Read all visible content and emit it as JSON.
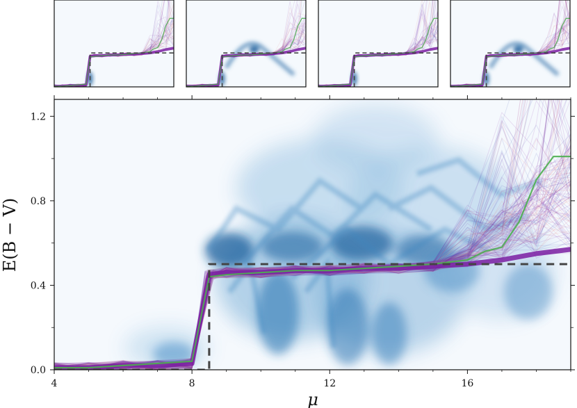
{
  "chart_data": {
    "type": "heatmap",
    "title": "",
    "xlabel": "μ",
    "ylabel": "E(B − V)",
    "xlim": [
      4,
      19
    ],
    "ylim": [
      0,
      1.28
    ],
    "xticks": [
      4,
      8,
      12,
      16
    ],
    "xtick_labels": [
      "4",
      "8",
      "12",
      "16"
    ],
    "yticks": [
      0.0,
      0.4,
      0.8,
      1.2
    ],
    "ytick_labels": [
      "0.0",
      "0.4",
      "0.8",
      "1.2"
    ],
    "colors": {
      "density": "#1f6eb0",
      "samples_purple": "#7b1fa2",
      "samples_red": "#e57373",
      "samples_blue": "#3f51b5",
      "best_fit": "#4caf50",
      "truth": "#444444"
    },
    "series": [
      {
        "name": "truth",
        "style": "dashed",
        "x": [
          4.0,
          8.5,
          8.5,
          19.0
        ],
        "y": [
          0.0,
          0.0,
          0.5,
          0.5
        ]
      },
      {
        "name": "best-fit",
        "style": "solid",
        "x": [
          4.0,
          5.0,
          6.0,
          7.0,
          8.0,
          8.5,
          9.0,
          10.0,
          11.0,
          12.0,
          13.0,
          14.0,
          15.0,
          16.0,
          16.5,
          17.0,
          17.5,
          18.0,
          18.5,
          19.0
        ],
        "y": [
          0.01,
          0.01,
          0.02,
          0.03,
          0.04,
          0.44,
          0.45,
          0.46,
          0.47,
          0.47,
          0.48,
          0.49,
          0.5,
          0.52,
          0.56,
          0.58,
          0.7,
          0.9,
          1.01,
          1.01
        ]
      },
      {
        "name": "samples-median",
        "style": "solid",
        "x": [
          4.0,
          5.0,
          6.0,
          7.0,
          8.0,
          8.5,
          9.0,
          10.0,
          11.0,
          12.0,
          13.0,
          14.0,
          15.0,
          16.0,
          17.0,
          18.0,
          19.0
        ],
        "y": [
          0.01,
          0.01,
          0.02,
          0.02,
          0.03,
          0.45,
          0.46,
          0.46,
          0.47,
          0.47,
          0.48,
          0.48,
          0.49,
          0.5,
          0.52,
          0.55,
          0.57
        ]
      }
    ],
    "panels": [
      {
        "name": "inset-1",
        "has_bump": false
      },
      {
        "name": "inset-2",
        "has_bump": true
      },
      {
        "name": "inset-3",
        "has_bump": false
      },
      {
        "name": "inset-4",
        "has_bump": true
      }
    ]
  }
}
